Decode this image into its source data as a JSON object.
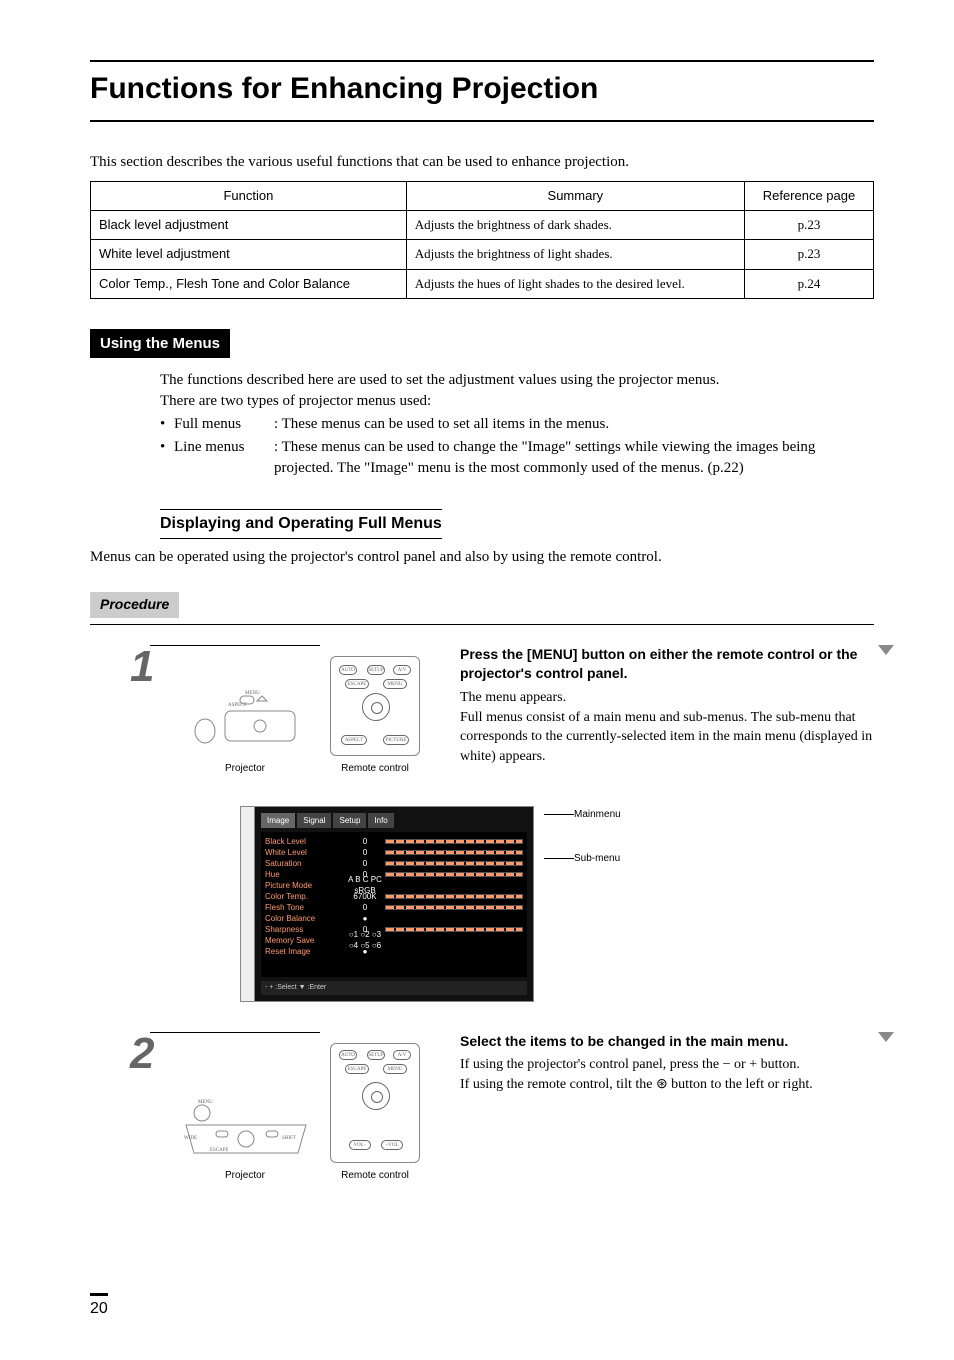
{
  "page": {
    "title": "Functions for Enhancing Projection",
    "intro": "This section describes the various useful functions that can be used to enhance projection.",
    "page_number": "20"
  },
  "func_table": {
    "headers": [
      "Function",
      "Summary",
      "Reference page"
    ],
    "rows": [
      {
        "func": "Black level adjustment",
        "summary": "Adjusts the brightness of dark shades.",
        "ref": "p.23"
      },
      {
        "func": "White level adjustment",
        "summary": "Adjusts the brightness of light shades.",
        "ref": "p.23"
      },
      {
        "func": "Color Temp., Flesh Tone and Color Balance",
        "summary": "Adjusts the hues of light shades to the desired level.",
        "ref": "p.24"
      }
    ]
  },
  "using_menus": {
    "title": "Using the Menus",
    "p1": "The functions described here are used to set the adjustment values using the projector menus.",
    "p2": "There are two types of projector menus used:",
    "bullets": [
      {
        "label": "Full menus",
        "text": ": These menus can be used to set all items in the menus."
      },
      {
        "label": "Line menus",
        "text": ": These menus can be used to change the \"Image\" settings while viewing the images being projected. The \"Image\" menu is the most commonly used of the menus. (p.22)"
      }
    ]
  },
  "subsection": {
    "title": "Displaying and Operating Full Menus",
    "text": "Menus can be operated using the projector's control panel and also by using the remote control."
  },
  "procedure_label": "Procedure",
  "diagram_labels": {
    "projector": "Projector",
    "remote": "Remote control",
    "mainmenu": "Mainmenu",
    "submenu": "Sub-menu"
  },
  "step1": {
    "num": "1",
    "head": "Press the [MENU] button on either the remote control or the projector's control panel.",
    "body1": "The menu appears.",
    "body2": "Full menus consist of a main menu and sub-menus. The sub-menu that corresponds to the currently-selected item in the main menu (displayed in white) appears."
  },
  "osd": {
    "tabs": [
      "Image",
      "Signal",
      "Setup",
      "Info"
    ],
    "rows": [
      {
        "label": "Black Level",
        "val": "0",
        "bar": true
      },
      {
        "label": "White Level",
        "val": "0",
        "bar": true
      },
      {
        "label": "Saturation",
        "val": "0",
        "bar": true
      },
      {
        "label": "Hue",
        "val": "0",
        "bar": true
      },
      {
        "label": "Picture Mode",
        "val": "A  B  C  PC sRGB",
        "bar": false
      },
      {
        "label": "Color Temp.",
        "val": "6700K",
        "bar": true
      },
      {
        "label": "Flesh Tone",
        "val": "0",
        "bar": true
      },
      {
        "label": "Color Balance",
        "val": "●",
        "bar": false
      },
      {
        "label": "Sharpness",
        "val": "0",
        "bar": true
      },
      {
        "label": "Memory Save",
        "val": "○1 ○2 ○3 ○4 ○5 ○6",
        "bar": false
      },
      {
        "label": "Reset Image",
        "val": "●",
        "bar": false
      }
    ],
    "footer": "- + :Select  ▼ :Enter"
  },
  "step2": {
    "num": "2",
    "head": "Select the items to be changed in the main menu.",
    "body1": "If using the projector's control panel, press the − or + button.",
    "body2": "If using the remote control, tilt the ⊛ button to the left or right."
  }
}
